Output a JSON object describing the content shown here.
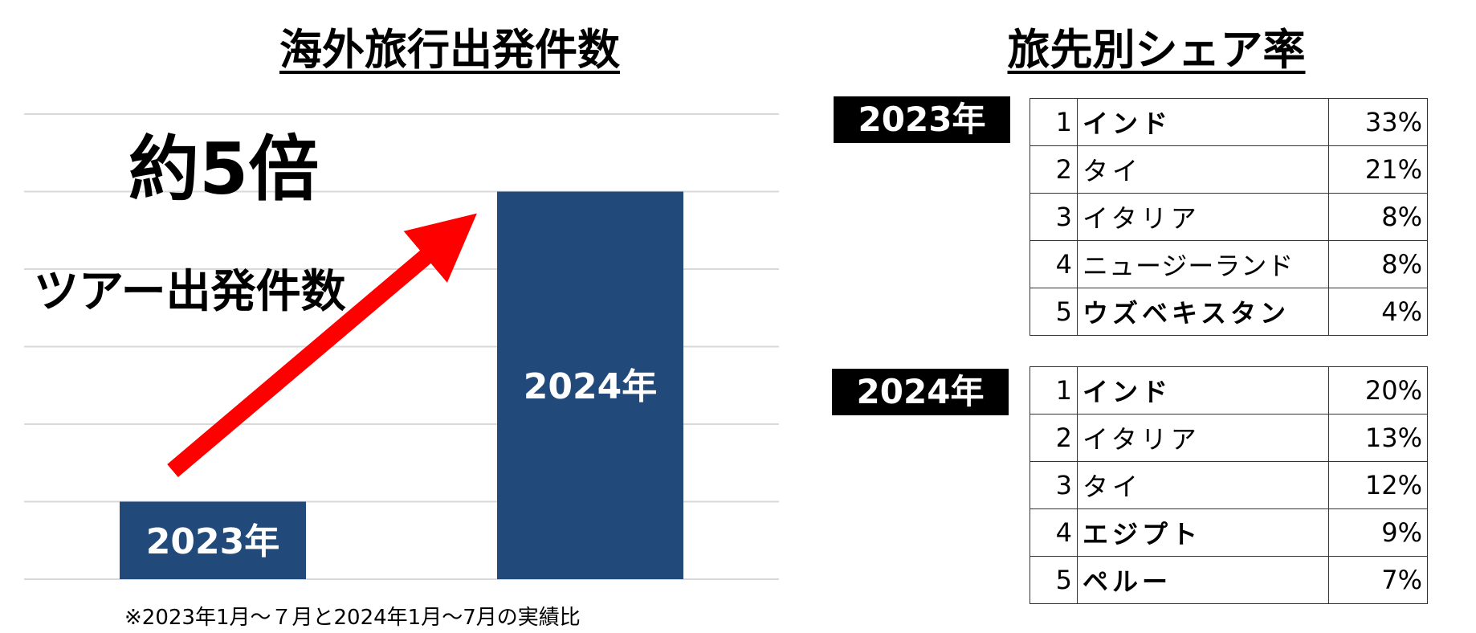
{
  "left_title": "海外旅行出発件数",
  "right_title": "旅先別シェア率",
  "multiplier_label": "約5倍",
  "chart_subtitle": "ツアー出発件数",
  "footnote": "※2023年1月～７月と2024年1月～7月の実績比",
  "chart_data": {
    "type": "bar",
    "title": "海外旅行出発件数",
    "categories": [
      "2023年",
      "2024年"
    ],
    "values": [
      1,
      5
    ],
    "ylim": [
      0,
      6
    ],
    "grid": true,
    "bar_color": "#21497a",
    "arrow_color": "#ff0000",
    "annotation": "約5倍"
  },
  "share_tables": [
    {
      "year": "2023年",
      "rows": [
        {
          "rank": "1",
          "destination": "インド",
          "share": "33%"
        },
        {
          "rank": "2",
          "destination": "タイ",
          "share": "21%"
        },
        {
          "rank": "3",
          "destination": "イタリア",
          "share": "8%"
        },
        {
          "rank": "4",
          "destination": "ニュージーランド",
          "share": "8%"
        },
        {
          "rank": "5",
          "destination": "ウズベキスタン",
          "share": "4%"
        }
      ]
    },
    {
      "year": "2024年",
      "rows": [
        {
          "rank": "1",
          "destination": "インド",
          "share": "20%"
        },
        {
          "rank": "2",
          "destination": "イタリア",
          "share": "13%"
        },
        {
          "rank": "3",
          "destination": "タイ",
          "share": "12%"
        },
        {
          "rank": "4",
          "destination": "エジプト",
          "share": "9%"
        },
        {
          "rank": "5",
          "destination": "ペルー",
          "share": "7%"
        }
      ]
    }
  ]
}
